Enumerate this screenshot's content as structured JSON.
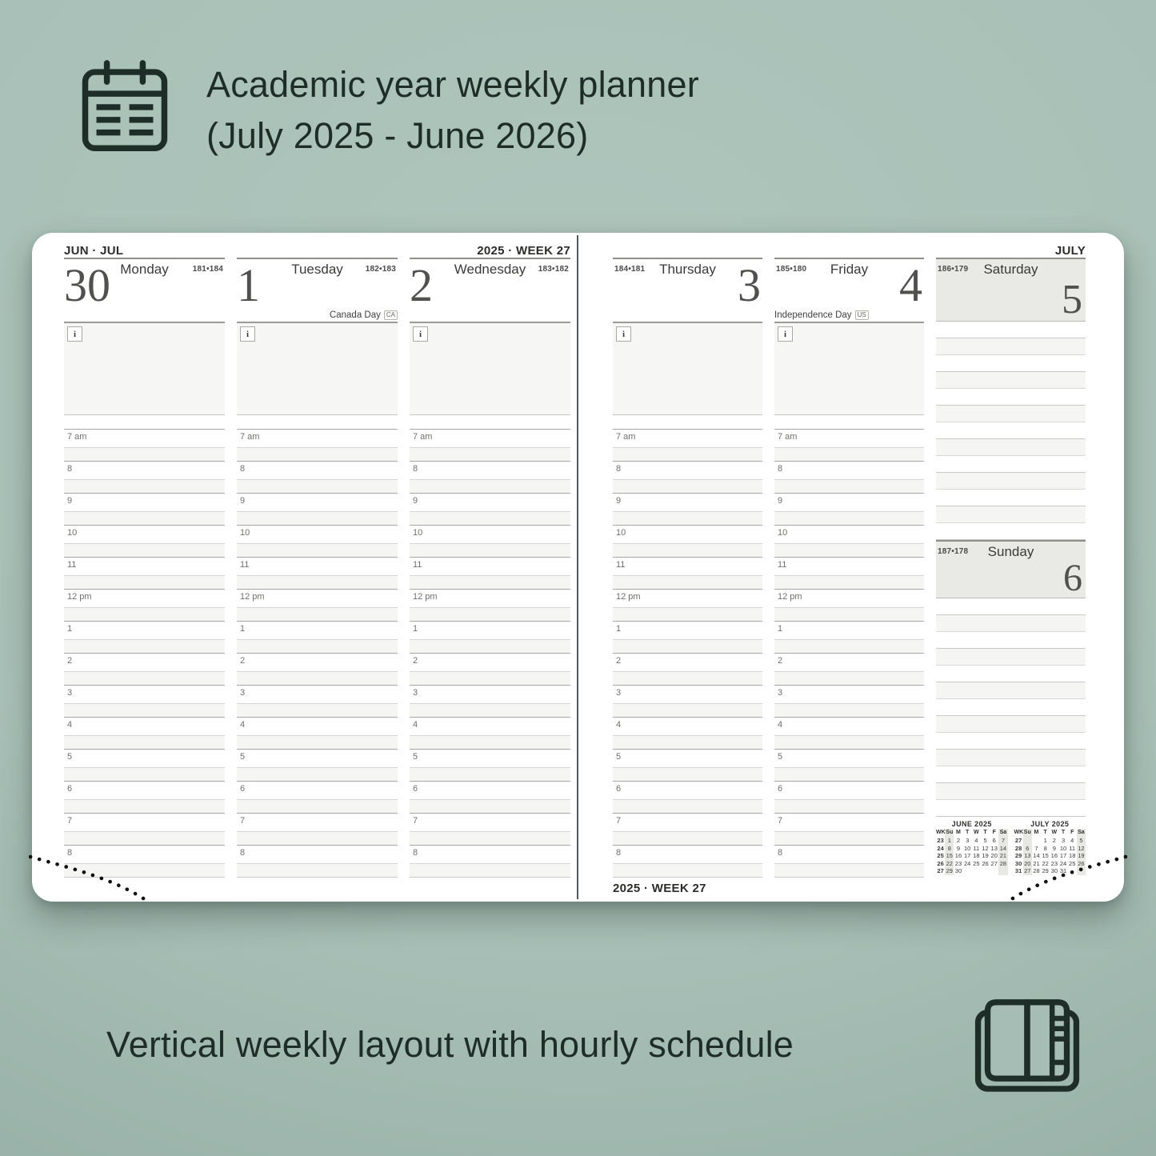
{
  "colors": {
    "background": "#a8c0b7",
    "ink": "#1f2d28",
    "page": "#ffffff",
    "notes_bg": "#f6f6f4",
    "weekend_bg": "#e9e9e6",
    "spine": "#53585a"
  },
  "header": {
    "title_line1": "Academic year weekly planner",
    "title_line2": "(July 2025 - June 2026)"
  },
  "footer": {
    "caption": "Vertical weekly layout with hourly schedule"
  },
  "planner": {
    "notes_icon": "i",
    "hours": [
      "7 am",
      "8",
      "9",
      "10",
      "11",
      "12 pm",
      "1",
      "2",
      "3",
      "4",
      "5",
      "6",
      "7",
      "8"
    ],
    "left_page": {
      "month_label": "JUN · JUL",
      "week_label": "2025 · WEEK 27",
      "days": [
        {
          "name": "Monday",
          "number": "30",
          "day_count": "181•184",
          "holiday": "",
          "holiday_tag": ""
        },
        {
          "name": "Tuesday",
          "number": "1",
          "day_count": "182•183",
          "holiday": "Canada Day",
          "holiday_tag": "CA"
        },
        {
          "name": "Wednesday",
          "number": "2",
          "day_count": "183•182",
          "holiday": "",
          "holiday_tag": ""
        }
      ]
    },
    "right_page": {
      "month_label": "JULY",
      "week_label": "2025 · WEEK 27",
      "days": [
        {
          "name": "Thursday",
          "number": "3",
          "day_count": "184•181",
          "holiday": "",
          "holiday_tag": ""
        },
        {
          "name": "Friday",
          "number": "4",
          "day_count": "185•180",
          "holiday": "Independence Day",
          "holiday_tag": "US"
        }
      ],
      "saturday": {
        "name": "Saturday",
        "number": "5",
        "day_count": "186•179"
      },
      "sunday": {
        "name": "Sunday",
        "number": "6",
        "day_count": "187•178"
      }
    },
    "mini_calendars": [
      {
        "title": "JUNE 2025",
        "day_header": [
          "WK",
          "Su",
          "M",
          "T",
          "W",
          "T",
          "F",
          "Sa"
        ],
        "weeks": [
          {
            "wk": "23",
            "days": [
              "1",
              "2",
              "3",
              "4",
              "5",
              "6",
              "7"
            ]
          },
          {
            "wk": "24",
            "days": [
              "8",
              "9",
              "10",
              "11",
              "12",
              "13",
              "14"
            ]
          },
          {
            "wk": "25",
            "days": [
              "15",
              "16",
              "17",
              "18",
              "19",
              "20",
              "21"
            ]
          },
          {
            "wk": "26",
            "days": [
              "22",
              "23",
              "24",
              "25",
              "26",
              "27",
              "28"
            ]
          },
          {
            "wk": "27",
            "days": [
              "29",
              "30",
              "",
              "",
              "",
              "",
              ""
            ]
          }
        ]
      },
      {
        "title": "JULY 2025",
        "day_header": [
          "WK",
          "Su",
          "M",
          "T",
          "W",
          "T",
          "F",
          "Sa"
        ],
        "weeks": [
          {
            "wk": "27",
            "days": [
              "",
              "",
              "1",
              "2",
              "3",
              "4",
              "5"
            ]
          },
          {
            "wk": "28",
            "days": [
              "6",
              "7",
              "8",
              "9",
              "10",
              "11",
              "12"
            ]
          },
          {
            "wk": "29",
            "days": [
              "13",
              "14",
              "15",
              "16",
              "17",
              "18",
              "19"
            ]
          },
          {
            "wk": "30",
            "days": [
              "20",
              "21",
              "22",
              "23",
              "24",
              "25",
              "26"
            ]
          },
          {
            "wk": "31",
            "days": [
              "27",
              "28",
              "29",
              "30",
              "31",
              "",
              ""
            ]
          }
        ]
      }
    ]
  }
}
